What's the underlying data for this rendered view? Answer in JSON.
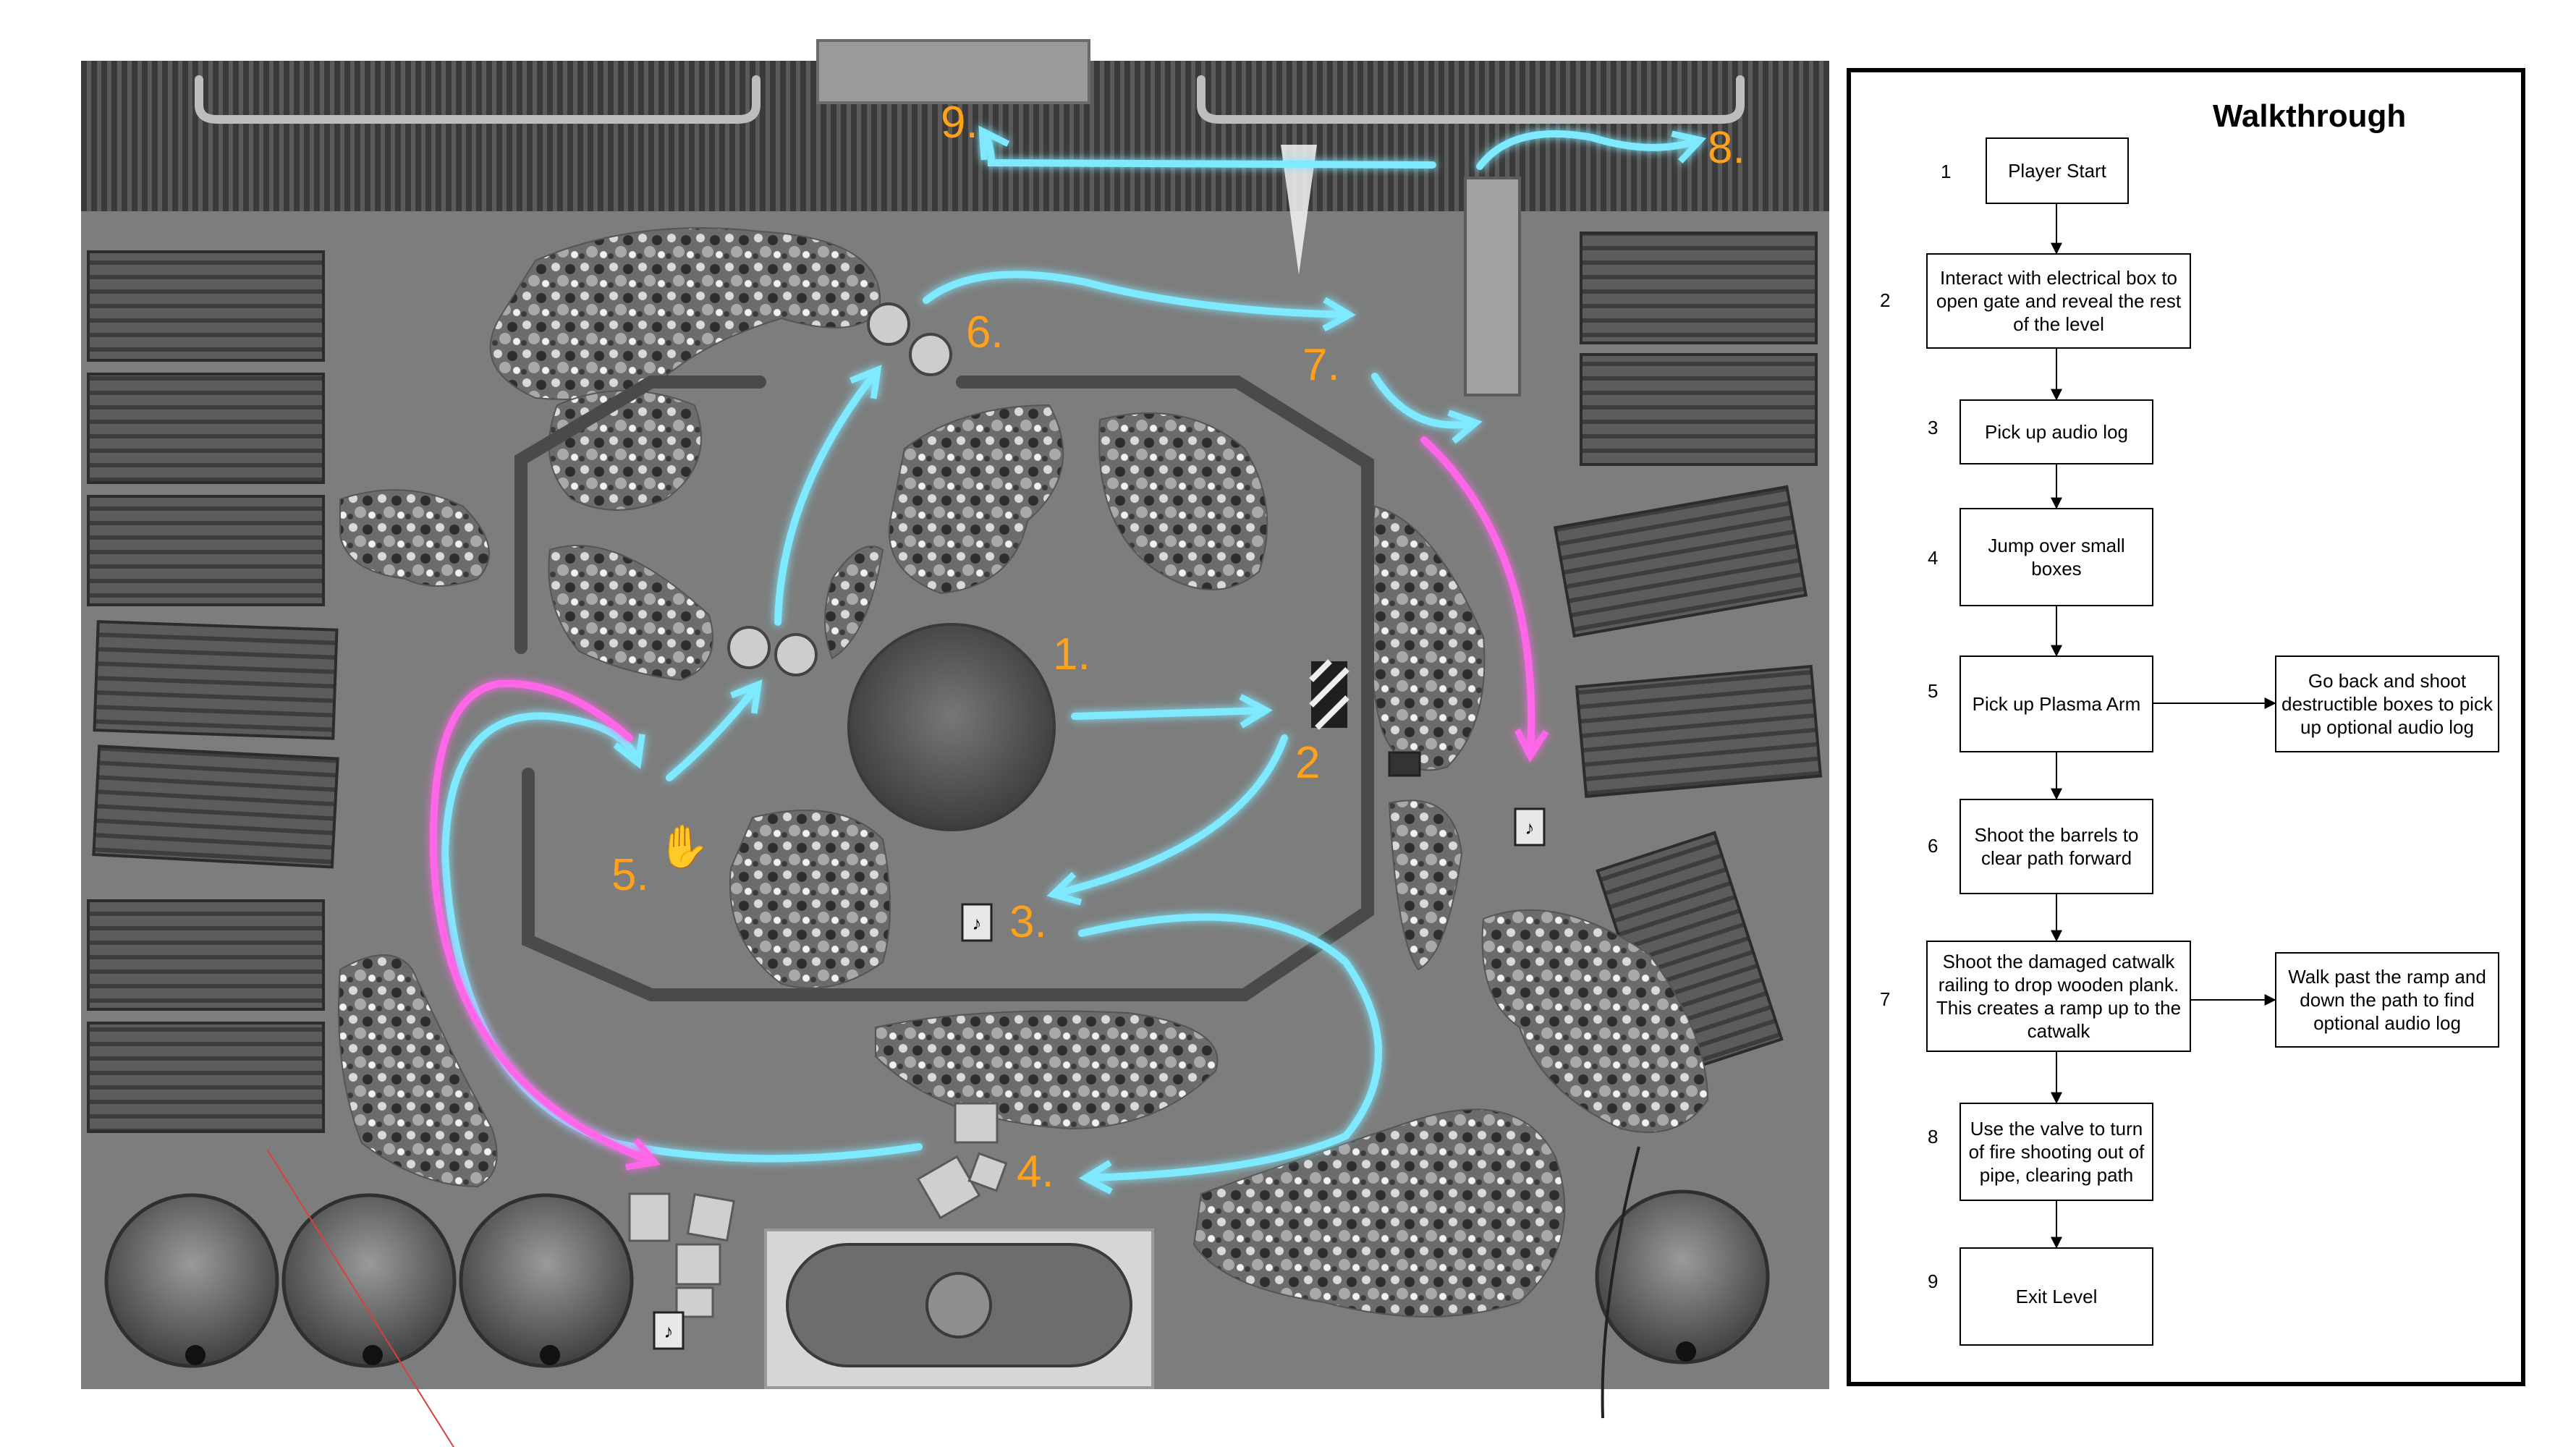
{
  "map": {
    "step_markers": [
      "1.",
      "2",
      "3.",
      "4.",
      "5.",
      "6.",
      "7.",
      "8.",
      "9."
    ],
    "colors": {
      "ground": "#7d7d7d",
      "fence": "#4e4e4e",
      "cyan_path": "#7fe9ff",
      "magenta_path": "#ff66e8",
      "marker": "#ffa21a"
    },
    "icons": [
      "audio-log-icon",
      "plasma-arm-hand-icon",
      "barrel-icon",
      "electrical-box-icon",
      "valve-icon"
    ]
  },
  "walkthrough": {
    "title": "Walkthrough",
    "steps": [
      {
        "num": "1",
        "label": "Player Start"
      },
      {
        "num": "2",
        "label": "Interact with electrical box to open gate and reveal the rest of the level"
      },
      {
        "num": "3",
        "label": "Pick up audio log"
      },
      {
        "num": "4",
        "label": "Jump over small boxes"
      },
      {
        "num": "5",
        "label": "Pick up Plasma Arm"
      },
      {
        "num": "6",
        "label": "Shoot the barrels to clear path forward"
      },
      {
        "num": "7",
        "label": "Shoot the damaged catwalk railing to drop wooden plank. This creates a ramp up to the catwalk"
      },
      {
        "num": "8",
        "label": "Use the valve to turn of fire shooting out of pipe, clearing path"
      },
      {
        "num": "9",
        "label": "Exit Level"
      }
    ],
    "side_notes": [
      {
        "attached_to": "5",
        "label": "Go back and shoot destructible boxes to pick up optional audio log"
      },
      {
        "attached_to": "7",
        "label": "Walk past the ramp and down the path to find optional audio log"
      }
    ]
  }
}
